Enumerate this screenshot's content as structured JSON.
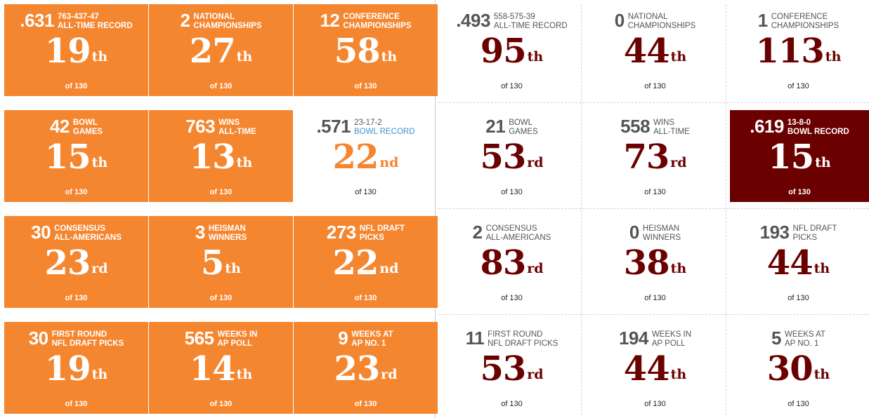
{
  "left": {
    "tiles": [
      {
        "num": ".631",
        "label1": "763-437-47",
        "label2": "ALL-TIME RECORD",
        "rank": "19",
        "suffix": "th",
        "of": "of 130"
      },
      {
        "num": "2",
        "label1": "NATIONAL",
        "label2": "CHAMPIONSHIPS",
        "rank": "27",
        "suffix": "th",
        "of": "of 130"
      },
      {
        "num": "12",
        "label1": "CONFERENCE",
        "label2": "CHAMPIONSHIPS",
        "rank": "58",
        "suffix": "th",
        "of": "of 130"
      },
      {
        "num": "42",
        "label1": "BOWL",
        "label2": "GAMES",
        "rank": "15",
        "suffix": "th",
        "of": "of 130"
      },
      {
        "num": "763",
        "label1": "WINS",
        "label2": "ALL-TIME",
        "rank": "13",
        "suffix": "th",
        "of": "of 130"
      },
      {
        "num": ".571",
        "label1": "23-17-2",
        "label2": "BOWL RECORD",
        "rank": "22",
        "suffix": "nd",
        "of": "of 130"
      },
      {
        "num": "30",
        "label1": "CONSENSUS",
        "label2": "ALL-AMERICANS",
        "rank": "23",
        "suffix": "rd",
        "of": "of 130"
      },
      {
        "num": "3",
        "label1": "HEISMAN",
        "label2": "WINNERS",
        "rank": "5",
        "suffix": "th",
        "of": "of 130"
      },
      {
        "num": "273",
        "label1": "NFL DRAFT",
        "label2": "PICKS",
        "rank": "22",
        "suffix": "nd",
        "of": "of 130"
      },
      {
        "num": "30",
        "label1": "FIRST ROUND",
        "label2": "NFL DRAFT PICKS",
        "rank": "19",
        "suffix": "th",
        "of": "of 130"
      },
      {
        "num": "565",
        "label1": "WEEKS IN",
        "label2": "AP POLL",
        "rank": "14",
        "suffix": "th",
        "of": "of 130"
      },
      {
        "num": "9",
        "label1": "WEEKS AT",
        "label2": "AP NO. 1",
        "rank": "23",
        "suffix": "rd",
        "of": "of 130"
      }
    ]
  },
  "right": {
    "tiles": [
      {
        "num": ".493",
        "label1": "558-575-39",
        "label2": "ALL-TIME RECORD",
        "rank": "95",
        "suffix": "th",
        "of": "of 130"
      },
      {
        "num": "0",
        "label1": "NATIONAL",
        "label2": "CHAMPIONSHIPS",
        "rank": "44",
        "suffix": "th",
        "of": "of 130"
      },
      {
        "num": "1",
        "label1": "CONFERENCE",
        "label2": "CHAMPIONSHIPS",
        "rank": "113",
        "suffix": "th",
        "of": "of 130"
      },
      {
        "num": "21",
        "label1": "BOWL",
        "label2": "GAMES",
        "rank": "53",
        "suffix": "rd",
        "of": "of 130"
      },
      {
        "num": "558",
        "label1": "WINS",
        "label2": "ALL-TIME",
        "rank": "73",
        "suffix": "rd",
        "of": "of 130"
      },
      {
        "num": ".619",
        "label1": "13-8-0",
        "label2": "BOWL RECORD",
        "rank": "15",
        "suffix": "th",
        "of": "of 130"
      },
      {
        "num": "2",
        "label1": "CONSENSUS",
        "label2": "ALL-AMERICANS",
        "rank": "83",
        "suffix": "rd",
        "of": "of 130"
      },
      {
        "num": "0",
        "label1": "HEISMAN",
        "label2": "WINNERS",
        "rank": "38",
        "suffix": "th",
        "of": "of 130"
      },
      {
        "num": "193",
        "label1": "NFL DRAFT",
        "label2": "PICKS",
        "rank": "44",
        "suffix": "th",
        "of": "of 130"
      },
      {
        "num": "11",
        "label1": "FIRST ROUND",
        "label2": "NFL DRAFT PICKS",
        "rank": "53",
        "suffix": "rd",
        "of": "of 130"
      },
      {
        "num": "194",
        "label1": "WEEKS IN",
        "label2": "AP POLL",
        "rank": "44",
        "suffix": "th",
        "of": "of 130"
      },
      {
        "num": "5",
        "label1": "WEEKS AT",
        "label2": "AP NO. 1",
        "rank": "30",
        "suffix": "th",
        "of": "of 130"
      }
    ]
  },
  "colors": {
    "orange": "#f58630",
    "maroon": "#6b0000",
    "blue_label": "#3f92d0",
    "gray_number": "#555555"
  }
}
